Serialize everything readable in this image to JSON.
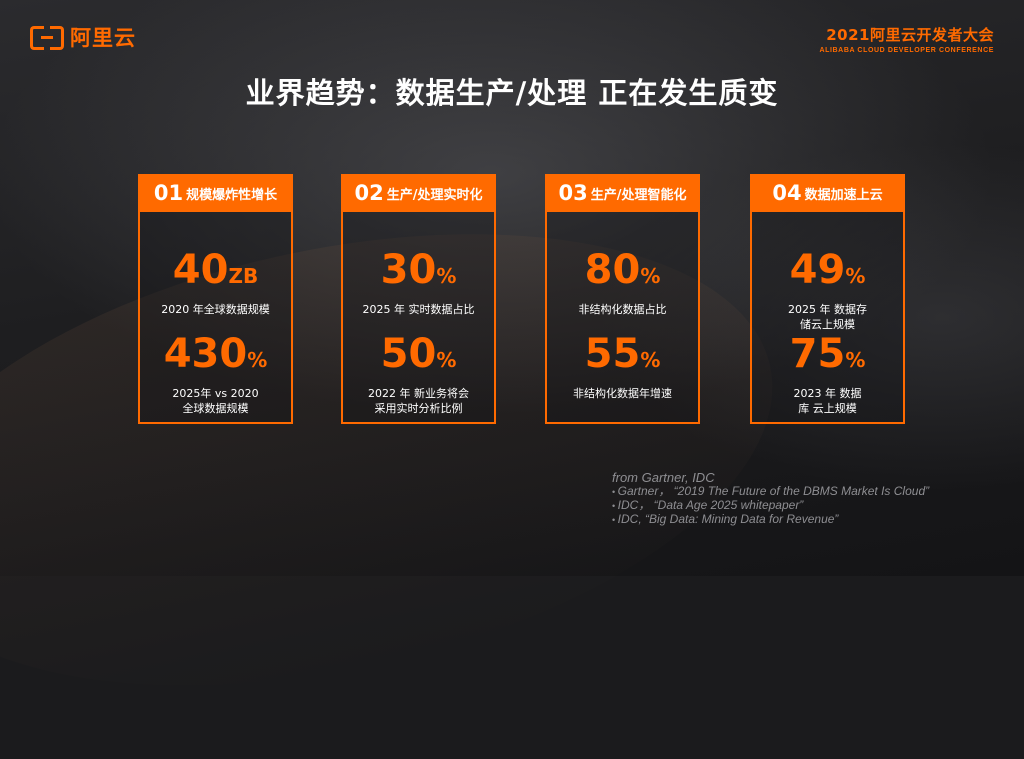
{
  "brand": {
    "logo_text": "阿里云",
    "accent": "#ff6a00"
  },
  "conference": {
    "title": "2021阿里云开发者大会",
    "subtitle": "ALIBABA CLOUD DEVELOPER CONFERENCE"
  },
  "page_title": "业界趋势：数据生产/处理 正在发生质变",
  "cards": [
    {
      "num": "01",
      "title": "规模爆炸性增长",
      "stats": [
        {
          "value": "40",
          "unit": "ZB",
          "label_lines": [
            "2020 年全球数据规模"
          ]
        },
        {
          "value": "430",
          "unit": "%",
          "label_lines": [
            "2025年 vs 2020",
            "全球数据规模"
          ]
        }
      ]
    },
    {
      "num": "02",
      "title": "生产/处理实时化",
      "stats": [
        {
          "value": "30",
          "unit": "%",
          "label_lines": [
            "2025 年 实时数据占比"
          ]
        },
        {
          "value": "50",
          "unit": "%",
          "label_lines": [
            "2022 年 新业务将会",
            "采用实时分析比例"
          ]
        }
      ]
    },
    {
      "num": "03",
      "title": "生产/处理智能化",
      "stats": [
        {
          "value": "80",
          "unit": "%",
          "label_lines": [
            "非结构化数据占比"
          ]
        },
        {
          "value": "55",
          "unit": "%",
          "label_lines": [
            "非结构化数据年增速"
          ]
        }
      ]
    },
    {
      "num": "04",
      "title": "数据加速上云",
      "stats": [
        {
          "value": "49",
          "unit": "%",
          "label_lines": [
            "2025 年 数据存",
            "储云上规模"
          ]
        },
        {
          "value": "75",
          "unit": "%",
          "label_lines": [
            "2023 年 数据",
            "库 云上规模"
          ]
        }
      ]
    }
  ],
  "sources": {
    "header": "from  Gartner, IDC",
    "items": [
      "Gartner，  “2019  The Future of the DBMS Market Is Cloud”",
      "IDC，    “Data Age 2025 whitepaper”",
      "IDC,    “Big Data: Mining Data for Revenue”"
    ]
  }
}
